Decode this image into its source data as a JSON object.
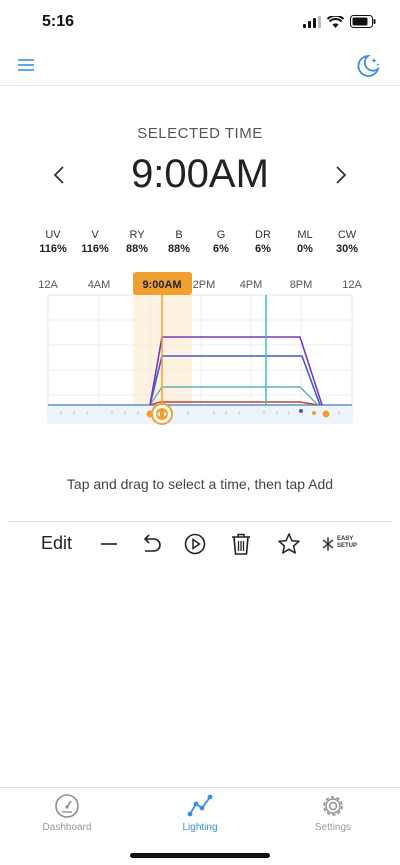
{
  "status": {
    "time": "5:16"
  },
  "header": {
    "menu_icon": "hamburger-menu-icon",
    "mode_icon": "moon-stars-icon"
  },
  "selected_time": {
    "label": "SELECTED TIME",
    "value": "9:00AM"
  },
  "channels": [
    {
      "name": "UV",
      "value": "116%"
    },
    {
      "name": "V",
      "value": "116%"
    },
    {
      "name": "RY",
      "value": "88%"
    },
    {
      "name": "B",
      "value": "88%"
    },
    {
      "name": "G",
      "value": "6%"
    },
    {
      "name": "DR",
      "value": "6%"
    },
    {
      "name": "ML",
      "value": "0%"
    },
    {
      "name": "CW",
      "value": "30%"
    }
  ],
  "timeline": {
    "labels": [
      "12A",
      "4AM",
      "2PM",
      "4PM",
      "8PM",
      "12A"
    ],
    "selected_label": "9:00AM"
  },
  "hint": "Tap and drag to select a time, then tap Add",
  "toolbar": {
    "edit_label": "Edit",
    "easy_setup_label": "EASY SETUP"
  },
  "tabs": [
    {
      "label": "Dashboard",
      "icon": "gauge-icon",
      "active": false
    },
    {
      "label": "Lighting",
      "icon": "graph-icon",
      "active": true
    },
    {
      "label": "Settings",
      "icon": "gear-icon",
      "active": false
    }
  ],
  "colors": {
    "accent": "#3a8fe3",
    "selection": "#f0a030",
    "purple_channel": "#7b35c9",
    "blue_channel": "#3f5fc0",
    "teal_channel": "#5ab0c8",
    "red_channel": "#c0443a",
    "now_marker": "#3cbfbf"
  }
}
